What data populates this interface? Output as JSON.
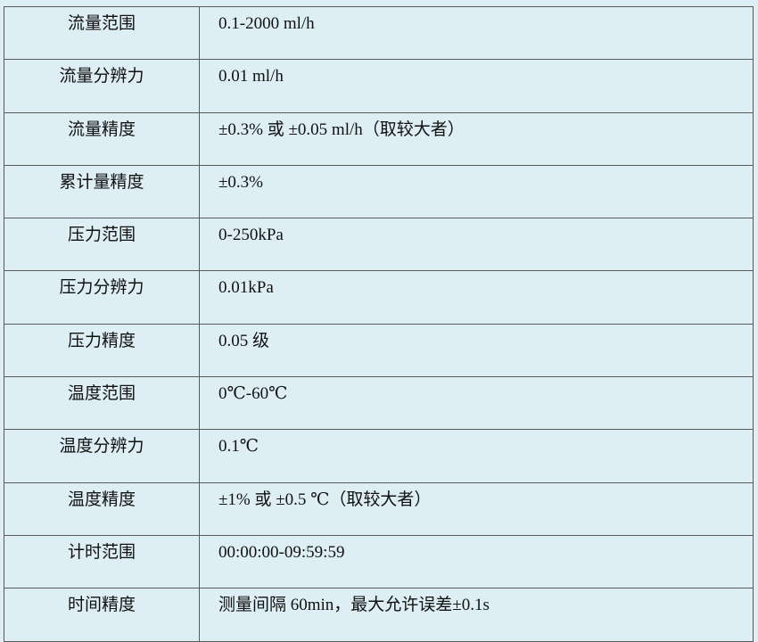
{
  "rows": [
    {
      "label": "流量范围",
      "value": "0.1-2000 ml/h"
    },
    {
      "label": "流量分辨力",
      "value": "0.01 ml/h"
    },
    {
      "label": "流量精度",
      "value": "±0.3%  或  ±0.05 ml/h（取较大者）"
    },
    {
      "label": "累计量精度",
      "value": "±0.3%"
    },
    {
      "label": "压力范围",
      "value": "0-250kPa"
    },
    {
      "label": "压力分辨力",
      "value": "0.01kPa"
    },
    {
      "label": "压力精度",
      "value": "0.05 级"
    },
    {
      "label": "温度范围",
      "value": "0℃-60℃"
    },
    {
      "label": "温度分辨力",
      "value": "0.1℃"
    },
    {
      "label": "温度精度",
      "value": "±1%  或  ±0.5 ℃（取较大者）"
    },
    {
      "label": "计时范围",
      "value": "00:00:00-09:59:59"
    },
    {
      "label": "时间精度",
      "value": "测量间隔 60min，最大允许误差±0.1s"
    }
  ]
}
